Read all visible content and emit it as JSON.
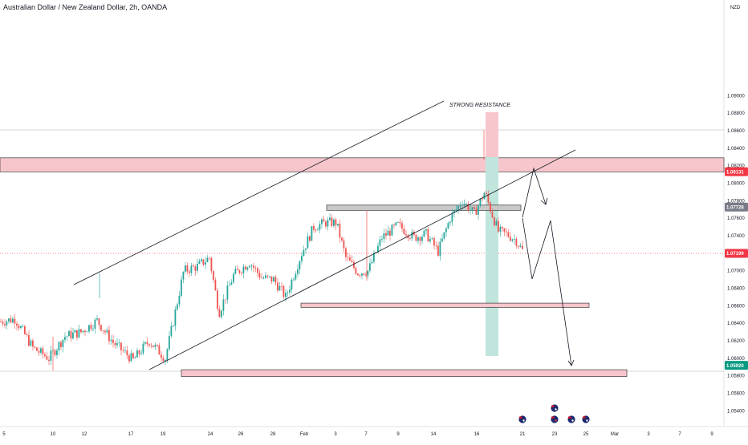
{
  "header": {
    "title": "Australian Dollar / New Zealand Dollar, 2h, OANDA"
  },
  "chart_data": {
    "type": "candlestick",
    "symbol": "AUDNZD",
    "interval": "2h",
    "source": "OANDA",
    "currency_label": "NZD",
    "ylim": [
      1.052,
      1.0915
    ],
    "y_ticks": [
      "1.09000",
      "1.08800",
      "1.08600",
      "1.08400",
      "1.08200",
      "1.08000",
      "1.07800",
      "1.07600",
      "1.07400",
      "1.07200",
      "1.07000",
      "1.06800",
      "1.06600",
      "1.06400",
      "1.06200",
      "1.06000",
      "1.05800",
      "1.05600",
      "1.05400"
    ],
    "x_ticks": [
      "5",
      "10",
      "12",
      "17",
      "19",
      "24",
      "26",
      "28",
      "Feb",
      "3",
      "7",
      "9",
      "14",
      "16",
      "21",
      "23",
      "25",
      "Mar",
      "3",
      "7",
      "9"
    ],
    "price_labels": [
      {
        "value": "1.08131",
        "color": "#f23645"
      },
      {
        "value": "1.07728",
        "color": "#787b86"
      },
      {
        "value": "1.07199",
        "color": "#f23645"
      },
      {
        "value": "1.05920",
        "color": "#089981"
      }
    ],
    "annotations": [
      {
        "type": "text",
        "text": "STRONG RESISTANCE"
      },
      {
        "type": "zone",
        "label": "resistance",
        "from": 1.0813,
        "to": 1.0829,
        "color": "#f7c6cc"
      },
      {
        "type": "zone",
        "label": "grey-box",
        "from": 1.0769,
        "to": 1.0775,
        "color": "#c8c8c8"
      },
      {
        "type": "zone",
        "label": "support-1",
        "from": 1.066,
        "to": 1.0663,
        "color": "#f7c6cc"
      },
      {
        "type": "zone",
        "label": "support-2",
        "from": 1.0581,
        "to": 1.0587,
        "color": "#f7c6cc"
      }
    ],
    "grid": false,
    "colors": {
      "up": "#26a69a",
      "down": "#ef5350",
      "resistance": "#f7c6cc",
      "current_price": "#f23645"
    }
  },
  "events": [
    {
      "icon": "flag-au-icon"
    },
    {
      "icon": "flag-au-icon"
    },
    {
      "icon": "flag-nz-icon"
    },
    {
      "icon": "flag-au-icon"
    },
    {
      "icon": "flag-au-icon"
    }
  ]
}
